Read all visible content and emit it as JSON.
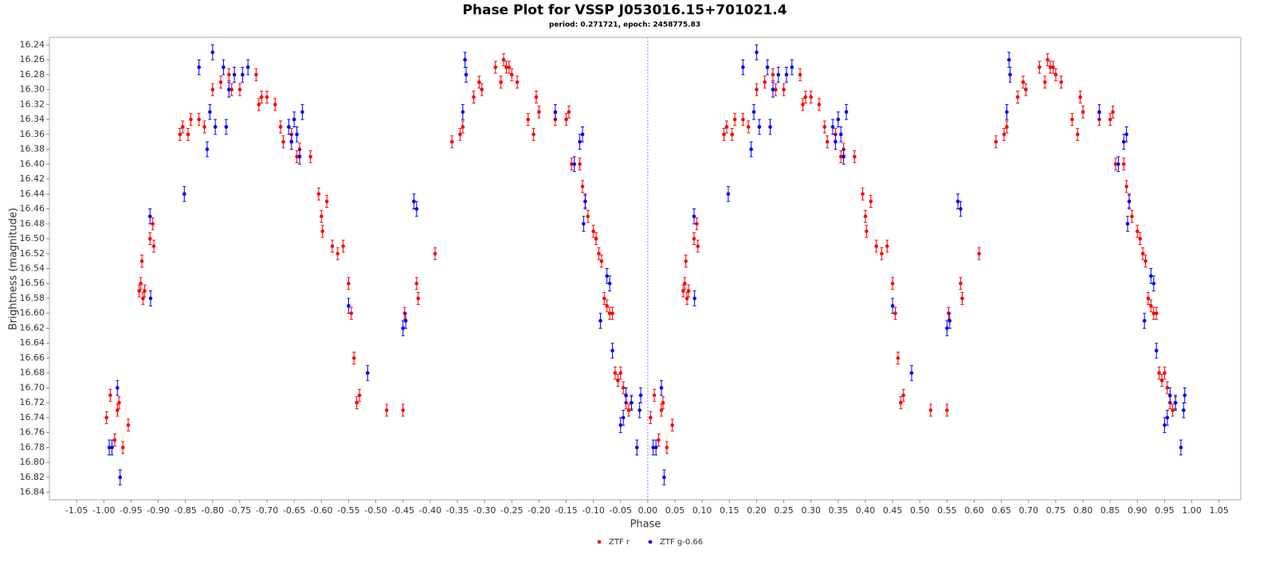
{
  "chart_data": {
    "type": "scatter",
    "title": "Phase Plot for VSSP J053016.15+701021.4",
    "subtitle": "period: 0.271721, epoch: 2458775.83",
    "x_label": "Phase",
    "y_label": "Brightness (magnitude)",
    "xlim": [
      -1.1,
      1.09
    ],
    "ylim": [
      16.85,
      16.23
    ],
    "zero_line": true,
    "grid": false,
    "xticks": [
      -1.05,
      {
        "value": -1.0,
        "label": "-1.00"
      },
      -0.95,
      {
        "value": -0.9,
        "label": "-0.90"
      },
      -0.85,
      {
        "value": -0.8,
        "label": "-0.80"
      },
      -0.75,
      {
        "value": -0.7,
        "label": "-0.70"
      },
      -0.65,
      {
        "value": -0.6,
        "label": "-0.60"
      },
      -0.55,
      {
        "value": -0.5,
        "label": "-0.50"
      },
      -0.45,
      {
        "value": -0.4,
        "label": "-0.40"
      },
      -0.35,
      {
        "value": -0.3,
        "label": "-0.30"
      },
      -0.25,
      {
        "value": -0.2,
        "label": "-0.20"
      },
      -0.15,
      {
        "value": -0.1,
        "label": "-0.10"
      },
      -0.05,
      {
        "value": 0,
        "label": "0.00"
      },
      0.05,
      {
        "value": 0.1,
        "label": "0.10"
      },
      0.15,
      {
        "value": 0.2,
        "label": "0.20"
      },
      0.25,
      {
        "value": 0.3,
        "label": "0.30"
      },
      0.35,
      {
        "value": 0.4,
        "label": "0.40"
      },
      0.45,
      {
        "value": 0.5,
        "label": "0.50"
      },
      0.55,
      {
        "value": 0.6,
        "label": "0.60"
      },
      0.65,
      {
        "value": 0.7,
        "label": "0.70"
      },
      0.75,
      {
        "value": 0.8,
        "label": "0.80"
      },
      0.85,
      {
        "value": 0.9,
        "label": "0.90"
      },
      0.95,
      {
        "value": 1.0,
        "label": "1.00"
      },
      1.05
    ],
    "yticks": [
      16.24,
      16.26,
      16.28,
      {
        "value": 16.3,
        "label": "16.30"
      },
      16.32,
      16.34,
      16.36,
      16.38,
      {
        "value": 16.4,
        "label": "16.40"
      },
      16.42,
      16.44,
      16.46,
      16.48,
      {
        "value": 16.5,
        "label": "16.50"
      },
      16.52,
      16.54,
      16.56,
      16.58,
      {
        "value": 16.6,
        "label": "16.60"
      },
      16.62,
      16.64,
      16.66,
      16.68,
      {
        "value": 16.7,
        "label": "16.70"
      },
      16.72,
      16.74,
      16.76,
      16.78,
      {
        "value": 16.8,
        "label": "16.80"
      },
      16.82,
      16.84
    ],
    "series": [
      {
        "name": "ZTF r",
        "color": "#ff0000",
        "error": 0.008,
        "x": [
          -0.995,
          -0.988,
          -0.98,
          -0.975,
          -0.972,
          -0.965,
          -0.955,
          -0.935,
          -0.932,
          -0.93,
          -0.928,
          -0.925,
          -0.915,
          -0.91,
          -0.908,
          -0.86,
          -0.855,
          -0.845,
          -0.84,
          -0.825,
          -0.815,
          -0.8,
          -0.785,
          -0.77,
          -0.765,
          -0.75,
          -0.72,
          -0.715,
          -0.71,
          -0.7,
          -0.685,
          -0.675,
          -0.67,
          -0.655,
          -0.645,
          -0.64,
          -0.62,
          -0.605,
          -0.6,
          -0.598,
          -0.59,
          -0.58,
          -0.57,
          -0.56,
          -0.55,
          -0.545,
          -0.54,
          -0.535,
          -0.53,
          -0.48,
          -0.45,
          -0.447,
          -0.425,
          -0.422,
          -0.391,
          -0.36,
          -0.345,
          -0.34,
          -0.32,
          -0.31,
          -0.305,
          -0.28,
          -0.27,
          -0.265,
          -0.26,
          -0.255,
          -0.25,
          -0.24,
          -0.22,
          -0.21,
          -0.205,
          -0.2,
          -0.17,
          -0.15,
          -0.145,
          -0.14,
          -0.125,
          -0.12,
          -0.115,
          -0.11,
          -0.1,
          -0.095,
          -0.09,
          -0.085,
          -0.08,
          -0.075,
          -0.07,
          -0.065,
          -0.06,
          -0.055,
          -0.05,
          -0.045,
          -0.04,
          -0.035,
          -0.03,
          0.005,
          0.012,
          0.02,
          0.025,
          0.028,
          0.035,
          0.045,
          0.065,
          0.068,
          0.07,
          0.072,
          0.075,
          0.085,
          0.09,
          0.092,
          0.14,
          0.145,
          0.155,
          0.16,
          0.175,
          0.185,
          0.2,
          0.215,
          0.23,
          0.235,
          0.25,
          0.28,
          0.285,
          0.29,
          0.3,
          0.315,
          0.325,
          0.33,
          0.345,
          0.355,
          0.36,
          0.38,
          0.395,
          0.4,
          0.402,
          0.41,
          0.42,
          0.43,
          0.44,
          0.45,
          0.455,
          0.46,
          0.465,
          0.47,
          0.52,
          0.55,
          0.553,
          0.575,
          0.578,
          0.609,
          0.64,
          0.655,
          0.66,
          0.68,
          0.69,
          0.695,
          0.72,
          0.73,
          0.735,
          0.74,
          0.745,
          0.75,
          0.76,
          0.78,
          0.79,
          0.795,
          0.8,
          0.83,
          0.85,
          0.855,
          0.86,
          0.875,
          0.88,
          0.885,
          0.89,
          0.9,
          0.905,
          0.91,
          0.915,
          0.92,
          0.925,
          0.93,
          0.935,
          0.94,
          0.945,
          0.95,
          0.955,
          0.96,
          0.965,
          0.97
        ],
        "values": [
          16.74,
          16.71,
          16.77,
          16.73,
          16.72,
          16.78,
          16.75,
          16.57,
          16.56,
          16.53,
          16.58,
          16.57,
          16.5,
          16.48,
          16.51,
          16.36,
          16.35,
          16.36,
          16.34,
          16.34,
          16.35,
          16.3,
          16.29,
          16.28,
          16.3,
          16.3,
          16.28,
          16.32,
          16.31,
          16.31,
          16.32,
          16.35,
          16.37,
          16.36,
          16.39,
          16.38,
          16.39,
          16.44,
          16.47,
          16.49,
          16.45,
          16.51,
          16.52,
          16.51,
          16.56,
          16.6,
          16.66,
          16.72,
          16.71,
          16.73,
          16.73,
          16.6,
          16.56,
          16.58,
          16.52,
          16.37,
          16.36,
          16.35,
          16.31,
          16.29,
          16.3,
          16.27,
          16.29,
          16.26,
          16.27,
          16.27,
          16.28,
          16.29,
          16.34,
          16.36,
          16.31,
          16.33,
          16.34,
          16.34,
          16.33,
          16.4,
          16.4,
          16.43,
          16.45,
          16.47,
          16.49,
          16.5,
          16.52,
          16.53,
          16.58,
          16.59,
          16.6,
          16.6,
          16.68,
          16.69,
          16.68,
          16.7,
          16.72,
          16.73,
          16.72,
          16.74,
          16.71,
          16.77,
          16.73,
          16.72,
          16.78,
          16.75,
          16.57,
          16.56,
          16.53,
          16.58,
          16.57,
          16.5,
          16.48,
          16.51,
          16.36,
          16.35,
          16.36,
          16.34,
          16.34,
          16.35,
          16.3,
          16.29,
          16.28,
          16.3,
          16.3,
          16.28,
          16.32,
          16.31,
          16.31,
          16.32,
          16.35,
          16.37,
          16.36,
          16.39,
          16.38,
          16.39,
          16.44,
          16.47,
          16.49,
          16.45,
          16.51,
          16.52,
          16.51,
          16.56,
          16.6,
          16.66,
          16.72,
          16.71,
          16.73,
          16.73,
          16.6,
          16.56,
          16.58,
          16.52,
          16.37,
          16.36,
          16.35,
          16.31,
          16.29,
          16.3,
          16.27,
          16.29,
          16.26,
          16.27,
          16.27,
          16.28,
          16.29,
          16.34,
          16.36,
          16.31,
          16.33,
          16.34,
          16.34,
          16.33,
          16.4,
          16.4,
          16.43,
          16.45,
          16.47,
          16.49,
          16.5,
          16.52,
          16.53,
          16.58,
          16.59,
          16.6,
          16.6,
          16.68,
          16.69,
          16.68,
          16.7,
          16.72,
          16.73,
          16.72
        ]
      },
      {
        "name": "ZTF g-0.66",
        "color": "#0000ff",
        "error": 0.01,
        "x": [
          -0.99,
          -0.985,
          -0.975,
          -0.97,
          -0.915,
          -0.914,
          -0.852,
          -0.825,
          -0.81,
          -0.805,
          -0.8,
          -0.795,
          -0.78,
          -0.775,
          -0.77,
          -0.76,
          -0.745,
          -0.735,
          -0.66,
          -0.655,
          -0.65,
          -0.645,
          -0.64,
          -0.635,
          -0.55,
          -0.515,
          -0.45,
          -0.445,
          -0.43,
          -0.425,
          -0.34,
          -0.336,
          -0.334,
          -0.17,
          -0.135,
          -0.125,
          -0.12,
          -0.118,
          -0.115,
          -0.087,
          -0.075,
          -0.07,
          -0.065,
          -0.05,
          -0.045,
          -0.04,
          -0.03,
          -0.02,
          -0.015,
          -0.013,
          0.01,
          0.015,
          0.025,
          0.03,
          0.085,
          0.086,
          0.148,
          0.175,
          0.19,
          0.195,
          0.2,
          0.205,
          0.22,
          0.225,
          0.23,
          0.24,
          0.255,
          0.265,
          0.34,
          0.345,
          0.35,
          0.355,
          0.36,
          0.365,
          0.45,
          0.485,
          0.55,
          0.555,
          0.57,
          0.575,
          0.66,
          0.664,
          0.666,
          0.83,
          0.865,
          0.875,
          0.88,
          0.882,
          0.885,
          0.913,
          0.925,
          0.93,
          0.935,
          0.95,
          0.955,
          0.96,
          0.97,
          0.98,
          0.985,
          0.987
        ],
        "values": [
          16.78,
          16.78,
          16.7,
          16.82,
          16.47,
          16.58,
          16.44,
          16.27,
          16.38,
          16.33,
          16.25,
          16.35,
          16.27,
          16.35,
          16.3,
          16.28,
          16.28,
          16.27,
          16.35,
          16.37,
          16.34,
          16.36,
          16.39,
          16.33,
          16.59,
          16.68,
          16.62,
          16.61,
          16.45,
          16.46,
          16.33,
          16.26,
          16.28,
          16.33,
          16.4,
          16.37,
          16.36,
          16.48,
          16.45,
          16.61,
          16.55,
          16.56,
          16.65,
          16.75,
          16.74,
          16.71,
          16.72,
          16.78,
          16.73,
          16.71,
          16.78,
          16.78,
          16.7,
          16.82,
          16.47,
          16.58,
          16.44,
          16.27,
          16.38,
          16.33,
          16.25,
          16.35,
          16.27,
          16.35,
          16.3,
          16.28,
          16.28,
          16.27,
          16.35,
          16.37,
          16.34,
          16.36,
          16.39,
          16.33,
          16.59,
          16.68,
          16.62,
          16.61,
          16.45,
          16.46,
          16.33,
          16.26,
          16.28,
          16.33,
          16.4,
          16.37,
          16.36,
          16.48,
          16.45,
          16.61,
          16.55,
          16.56,
          16.65,
          16.75,
          16.74,
          16.71,
          16.72,
          16.78,
          16.73,
          16.71
        ]
      }
    ]
  }
}
